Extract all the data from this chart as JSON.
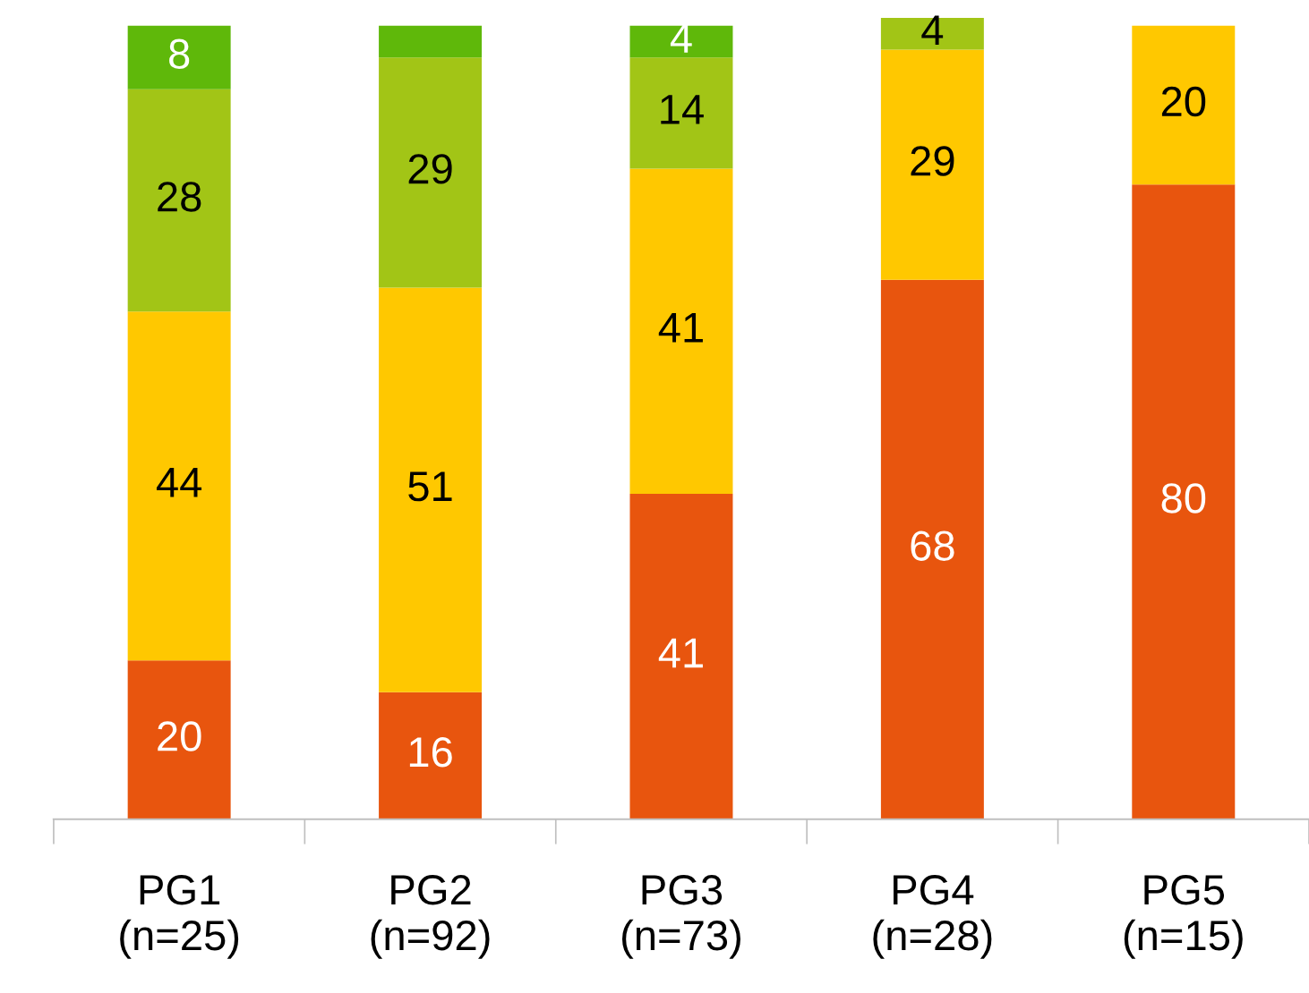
{
  "chart_data": {
    "type": "bar",
    "stacked": true,
    "categories": [
      "PG1\n(n=25)",
      "PG2\n(n=92)",
      "PG3\n(n=73)",
      "PG4\n(n=28)",
      "PG5\n(n=15)"
    ],
    "series": [
      {
        "color": "#e8550e",
        "values": [
          20,
          16,
          41,
          68,
          80
        ],
        "value_labels": [
          "20",
          "16",
          "41",
          "68",
          "80"
        ]
      },
      {
        "color": "#ffc800",
        "values": [
          44,
          51,
          41,
          29,
          20
        ],
        "value_labels": [
          "44",
          "51",
          "41",
          "29",
          "20"
        ]
      },
      {
        "color": "#a2c516",
        "values": [
          28,
          29,
          14,
          4,
          null
        ],
        "value_labels": [
          "28",
          "29",
          "14",
          "4",
          null
        ]
      },
      {
        "color": "#5fb80a",
        "values": [
          8,
          4,
          4,
          null,
          null
        ],
        "value_labels": [
          "8",
          null,
          "4",
          null,
          null
        ]
      }
    ],
    "grid": false,
    "legend": false
  }
}
